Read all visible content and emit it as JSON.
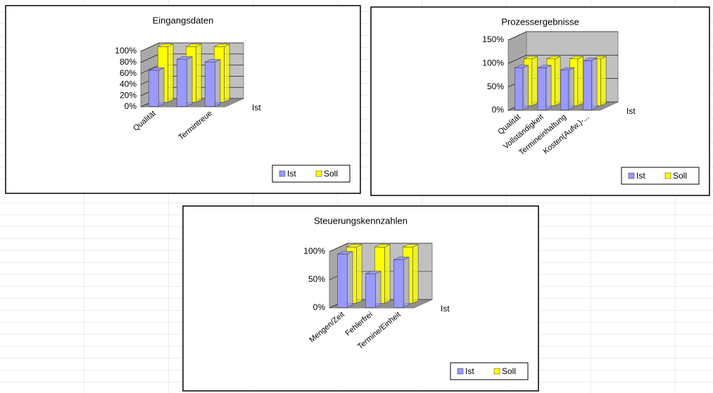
{
  "chart_data": [
    {
      "type": "bar3d",
      "title": "Eingangsdaten",
      "categories": [
        "Qualität",
        null,
        "Termintreue"
      ],
      "series": [
        {
          "name": "Ist",
          "color": "#9999ff",
          "values": [
            65,
            85,
            80
          ]
        },
        {
          "name": "Soll",
          "color": "#ffff00",
          "values": [
            100,
            100,
            100
          ]
        }
      ],
      "depth_label": "Ist",
      "ylim": [
        0,
        100
      ],
      "yticks": [
        {
          "value": 0,
          "label": "0%"
        },
        {
          "value": 20,
          "label": "20%"
        },
        {
          "value": 40,
          "label": "40%"
        },
        {
          "value": 60,
          "label": "60%"
        },
        {
          "value": 80,
          "label": "80%"
        },
        {
          "value": 100,
          "label": "100%"
        }
      ],
      "grid": true
    },
    {
      "type": "bar3d",
      "title": "Prozessergebnisse",
      "categories": [
        "Qualität",
        "Vollständigkeit",
        "Termineinhaltung",
        "Kosten(Aufw.)-..."
      ],
      "series": [
        {
          "name": "Ist",
          "color": "#9999ff",
          "values": [
            90,
            90,
            85,
            105
          ]
        },
        {
          "name": "Soll",
          "color": "#ffff00",
          "values": [
            100,
            100,
            100,
            100
          ]
        }
      ],
      "depth_label": "Ist",
      "ylim": [
        0,
        150
      ],
      "yticks": [
        {
          "value": 0,
          "label": "0%"
        },
        {
          "value": 50,
          "label": "50%"
        },
        {
          "value": 100,
          "label": "100%"
        },
        {
          "value": 150,
          "label": "150%"
        }
      ],
      "grid": true
    },
    {
      "type": "bar3d",
      "title": "Steuerungskennzahlen",
      "categories": [
        "Mengen/Zeit",
        "Fehlerfrei",
        "Termine/Einheit"
      ],
      "series": [
        {
          "name": "Ist",
          "color": "#9999ff",
          "values": [
            95,
            60,
            85
          ]
        },
        {
          "name": "Soll",
          "color": "#ffff00",
          "values": [
            100,
            100,
            100
          ]
        }
      ],
      "depth_label": "Ist",
      "ylim": [
        0,
        100
      ],
      "yticks": [
        {
          "value": 0,
          "label": "0%"
        },
        {
          "value": 50,
          "label": "50%"
        },
        {
          "value": 100,
          "label": "100%"
        }
      ],
      "grid": true
    }
  ]
}
